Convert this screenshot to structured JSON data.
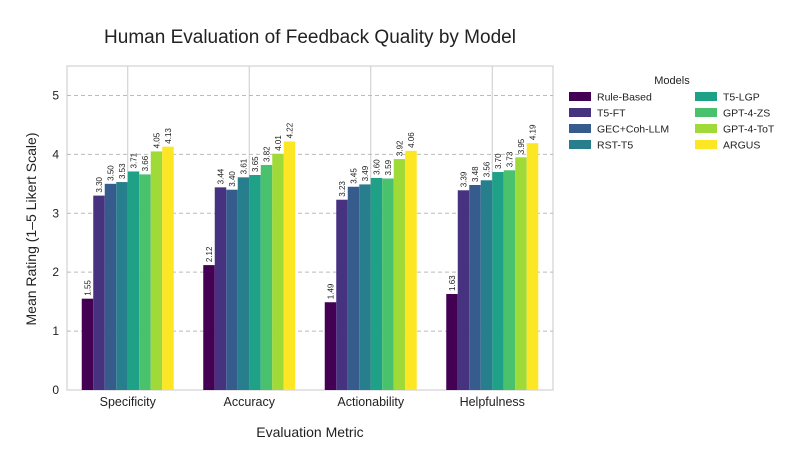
{
  "chart_data": {
    "type": "bar",
    "title": "Human Evaluation of Feedback Quality by Model",
    "xlabel": "Evaluation Metric",
    "ylabel": "Mean Rating (1–5 Likert Scale)",
    "ylim": [
      0,
      5.5
    ],
    "yticks": [
      "0",
      "1",
      "2",
      "3",
      "4",
      "5"
    ],
    "grid": true,
    "legend_title": "Models",
    "legend_position": "right",
    "categories": [
      "Specificity",
      "Accuracy",
      "Actionability",
      "Helpfulness"
    ],
    "series": [
      {
        "name": "Rule-Based",
        "color": "#440154",
        "values": [
          1.55,
          2.12,
          1.49,
          1.63
        ],
        "labels": [
          "1.55",
          "2.12",
          "1.49",
          "1.63"
        ]
      },
      {
        "name": "T5-FT",
        "color": "#46327e",
        "values": [
          3.3,
          3.44,
          3.23,
          3.39
        ],
        "labels": [
          "3.30",
          "3.44",
          "3.23",
          "3.39"
        ]
      },
      {
        "name": "GEC+Coh-LLM",
        "color": "#365c8d",
        "values": [
          3.5,
          3.4,
          3.45,
          3.48
        ],
        "labels": [
          "3.50",
          "3.40",
          "3.45",
          "3.48"
        ]
      },
      {
        "name": "RST-T5",
        "color": "#277f8e",
        "values": [
          3.53,
          3.61,
          3.49,
          3.56
        ],
        "labels": [
          "3.53",
          "3.61",
          "3.49",
          "3.56"
        ]
      },
      {
        "name": "T5-LGP",
        "color": "#1fa187",
        "values": [
          3.71,
          3.65,
          3.6,
          3.7
        ],
        "labels": [
          "3.71",
          "3.65",
          "3.60",
          "3.70"
        ]
      },
      {
        "name": "GPT-4-ZS",
        "color": "#4ac16d",
        "values": [
          3.66,
          3.82,
          3.59,
          3.73
        ],
        "labels": [
          "3.66",
          "3.82",
          "3.59",
          "3.73"
        ]
      },
      {
        "name": "GPT-4-ToT",
        "color": "#a0da39",
        "values": [
          4.05,
          4.01,
          3.92,
          3.95
        ],
        "labels": [
          "4.05",
          "4.01",
          "3.92",
          "3.95"
        ]
      },
      {
        "name": "ARGUS",
        "color": "#fde725",
        "values": [
          4.13,
          4.22,
          4.06,
          4.19
        ],
        "labels": [
          "4.13",
          "4.22",
          "4.06",
          "4.19"
        ]
      }
    ]
  }
}
